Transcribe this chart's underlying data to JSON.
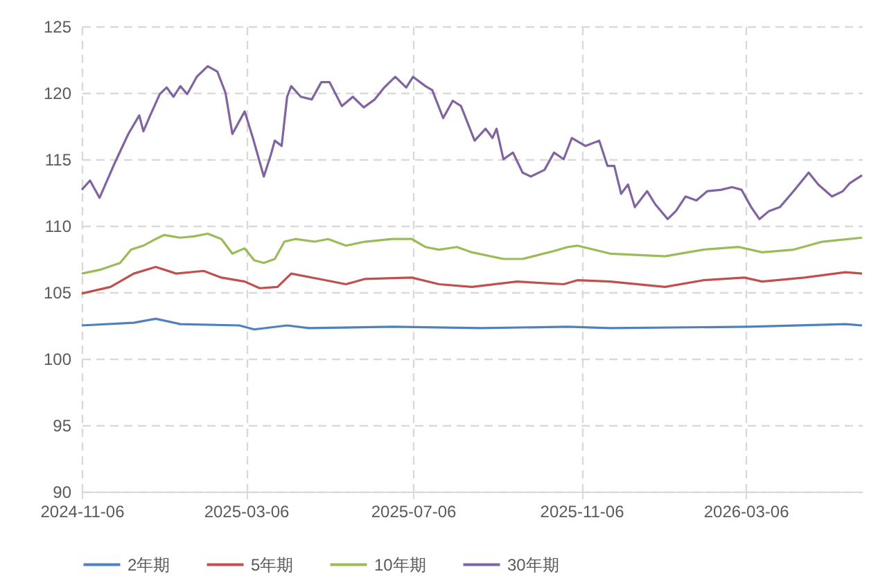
{
  "chart_data": {
    "type": "line",
    "xlim": [
      "2024-11-06",
      "2026-05-30"
    ],
    "xticks": [
      "2024-11-06",
      "2025-03-06",
      "2025-07-06",
      "2025-11-06",
      "2026-03-06"
    ],
    "ylim": [
      90,
      125
    ],
    "yticks": [
      90,
      95,
      100,
      105,
      110,
      115,
      120,
      125
    ],
    "grid": true,
    "legend": "bottom",
    "series": [
      {
        "name": "2年期",
        "color": "#4f81bd",
        "x": [
          "2024-11-06",
          "2024-12-14",
          "2024-12-30",
          "2025-01-17",
          "2025-03-01",
          "2025-03-12",
          "2025-04-05",
          "2025-04-21",
          "2025-06-21",
          "2025-08-25",
          "2025-10-27",
          "2025-11-27",
          "2026-03-08",
          "2026-05-18",
          "2026-05-30"
        ],
        "values": [
          102.5,
          102.7,
          103.0,
          102.6,
          102.5,
          102.2,
          102.5,
          102.3,
          102.4,
          102.3,
          102.4,
          102.3,
          102.4,
          102.6,
          102.5
        ]
      },
      {
        "name": "5年期",
        "color": "#c0504d",
        "x": [
          "2024-11-06",
          "2024-11-27",
          "2024-12-14",
          "2024-12-30",
          "2025-01-14",
          "2025-02-03",
          "2025-02-16",
          "2025-03-05",
          "2025-03-16",
          "2025-03-29",
          "2025-04-08",
          "2025-04-28",
          "2025-05-18",
          "2025-06-01",
          "2025-07-05",
          "2025-07-25",
          "2025-08-18",
          "2025-09-20",
          "2025-10-24",
          "2025-11-03",
          "2025-11-27",
          "2026-01-06",
          "2026-02-03",
          "2026-03-05",
          "2026-03-18",
          "2026-04-18",
          "2026-05-18",
          "2026-05-30"
        ],
        "values": [
          104.9,
          105.4,
          106.4,
          106.9,
          106.4,
          106.6,
          106.1,
          105.8,
          105.3,
          105.4,
          106.4,
          106.0,
          105.6,
          106.0,
          106.1,
          105.6,
          105.4,
          105.8,
          105.6,
          105.9,
          105.8,
          105.4,
          105.9,
          106.1,
          105.8,
          106.1,
          106.5,
          106.4
        ]
      },
      {
        "name": "10年期",
        "color": "#9bbb59",
        "x": [
          "2024-11-06",
          "2024-11-20",
          "2024-12-04",
          "2024-12-12",
          "2024-12-21",
          "2024-12-30",
          "2025-01-05",
          "2025-01-17",
          "2025-01-27",
          "2025-02-06",
          "2025-02-16",
          "2025-02-24",
          "2025-03-05",
          "2025-03-12",
          "2025-03-19",
          "2025-03-27",
          "2025-04-03",
          "2025-04-11",
          "2025-04-25",
          "2025-05-05",
          "2025-05-18",
          "2025-06-01",
          "2025-06-21",
          "2025-07-05",
          "2025-07-15",
          "2025-07-25",
          "2025-08-07",
          "2025-08-18",
          "2025-09-10",
          "2025-09-24",
          "2025-10-17",
          "2025-10-27",
          "2025-11-03",
          "2025-11-27",
          "2026-01-06",
          "2026-02-03",
          "2026-03-01",
          "2026-03-18",
          "2026-04-10",
          "2026-05-01",
          "2026-05-30"
        ],
        "values": [
          106.4,
          106.7,
          107.2,
          108.2,
          108.5,
          109.0,
          109.3,
          109.1,
          109.2,
          109.4,
          109.0,
          107.9,
          108.3,
          107.4,
          107.2,
          107.5,
          108.8,
          109.0,
          108.8,
          109.0,
          108.5,
          108.8,
          109.0,
          109.0,
          108.4,
          108.2,
          108.4,
          108.0,
          107.5,
          107.5,
          108.1,
          108.4,
          108.5,
          107.9,
          107.7,
          108.2,
          108.4,
          108.0,
          108.2,
          108.8,
          109.1
        ]
      },
      {
        "name": "30年期",
        "color": "#8064a2",
        "x": [
          "2024-11-06",
          "2024-11-12",
          "2024-11-19",
          "2024-11-30",
          "2024-12-10",
          "2024-12-18",
          "2024-12-21",
          "2024-12-26",
          "2025-01-02",
          "2025-01-07",
          "2025-01-12",
          "2025-01-17",
          "2025-01-22",
          "2025-01-29",
          "2025-02-06",
          "2025-02-13",
          "2025-02-19",
          "2025-02-24",
          "2025-03-05",
          "2025-03-11",
          "2025-03-19",
          "2025-03-24",
          "2025-03-27",
          "2025-04-01",
          "2025-04-05",
          "2025-04-08",
          "2025-04-15",
          "2025-04-23",
          "2025-04-30",
          "2025-05-06",
          "2025-05-15",
          "2025-05-23",
          "2025-05-31",
          "2025-06-08",
          "2025-06-15",
          "2025-06-23",
          "2025-07-01",
          "2025-07-06",
          "2025-07-15",
          "2025-07-20",
          "2025-07-28",
          "2025-08-04",
          "2025-08-10",
          "2025-08-20",
          "2025-08-28",
          "2025-09-02",
          "2025-09-05",
          "2025-09-10",
          "2025-09-17",
          "2025-09-24",
          "2025-09-30",
          "2025-10-10",
          "2025-10-17",
          "2025-10-24",
          "2025-10-30",
          "2025-11-09",
          "2025-11-19",
          "2025-11-25",
          "2025-11-30",
          "2025-12-05",
          "2025-12-10",
          "2025-12-15",
          "2025-12-24",
          "2025-12-30",
          "2026-01-08",
          "2026-01-14",
          "2026-01-21",
          "2026-01-29",
          "2026-02-06",
          "2026-02-16",
          "2026-02-24",
          "2026-03-03",
          "2026-03-10",
          "2026-03-16",
          "2026-03-23",
          "2026-03-31",
          "2026-04-10",
          "2026-04-21",
          "2026-04-28",
          "2026-05-08",
          "2026-05-16",
          "2026-05-21",
          "2026-05-30"
        ],
        "values": [
          112.7,
          113.4,
          112.1,
          114.7,
          116.9,
          118.3,
          117.1,
          118.3,
          119.9,
          120.4,
          119.7,
          120.5,
          119.9,
          121.2,
          122.0,
          121.6,
          120.0,
          116.9,
          118.6,
          116.6,
          113.7,
          115.3,
          116.4,
          116.0,
          119.7,
          120.5,
          119.7,
          119.5,
          120.8,
          120.8,
          119.0,
          119.7,
          118.9,
          119.5,
          120.4,
          121.2,
          120.4,
          121.2,
          120.5,
          120.2,
          118.1,
          119.4,
          119.0,
          116.4,
          117.3,
          116.6,
          117.3,
          115.0,
          115.5,
          114.0,
          113.7,
          114.2,
          115.5,
          115.0,
          116.6,
          116.0,
          116.4,
          114.5,
          114.5,
          112.4,
          113.1,
          111.4,
          112.6,
          111.6,
          110.5,
          111.1,
          112.2,
          111.9,
          112.6,
          112.7,
          112.9,
          112.7,
          111.4,
          110.5,
          111.1,
          111.4,
          112.6,
          114.0,
          113.1,
          112.2,
          112.6,
          113.2,
          113.8
        ]
      }
    ]
  }
}
